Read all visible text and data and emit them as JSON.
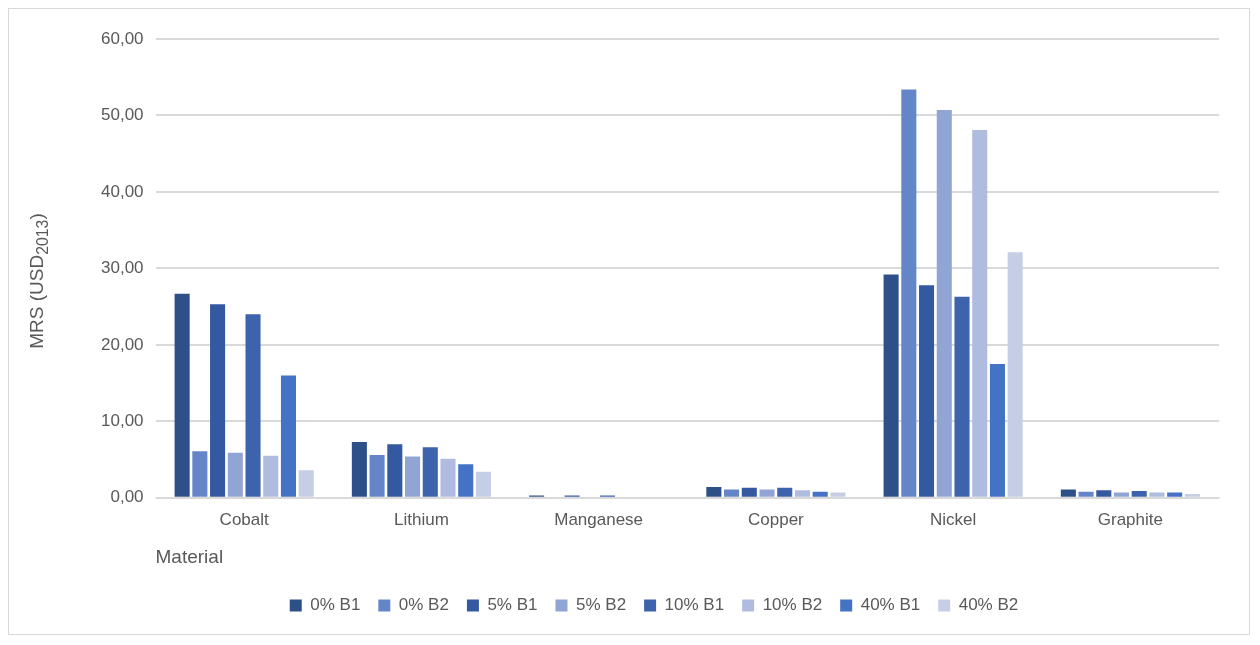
{
  "chart_data": {
    "type": "bar",
    "ylabel": "MRS (USD$_{2013}$)",
    "xlabel": "Material",
    "categories": [
      "Cobalt",
      "Lithium",
      "Manganese",
      "Copper",
      "Nickel",
      "Graphite"
    ],
    "series": [
      {
        "name": "0% B1",
        "color": "#2e5088",
        "values": [
          26.7,
          7.3,
          0.3,
          1.4,
          29.2,
          1.1
        ]
      },
      {
        "name": "0% B2",
        "color": "#6585c9",
        "values": [
          6.1,
          5.6,
          null,
          1.1,
          53.4,
          0.8
        ]
      },
      {
        "name": "5% B1",
        "color": "#3559a0",
        "values": [
          25.3,
          7.0,
          0.3,
          1.3,
          27.8,
          1.0
        ]
      },
      {
        "name": "5% B2",
        "color": "#91a5d4",
        "values": [
          5.9,
          5.4,
          null,
          1.1,
          50.7,
          0.7
        ]
      },
      {
        "name": "10% B1",
        "color": "#3d63ad",
        "values": [
          24.0,
          6.6,
          0.3,
          1.3,
          26.3,
          0.9
        ]
      },
      {
        "name": "10% B2",
        "color": "#afbcdf",
        "values": [
          5.5,
          5.1,
          null,
          1.0,
          48.1,
          0.7
        ]
      },
      {
        "name": "40% B1",
        "color": "#4472c4",
        "values": [
          16.0,
          4.4,
          null,
          0.8,
          17.5,
          0.7
        ]
      },
      {
        "name": "40% B2",
        "color": "#c5cee5",
        "values": [
          3.6,
          3.4,
          null,
          0.7,
          32.1,
          0.5
        ]
      }
    ],
    "ylim": [
      0,
      60
    ],
    "yticks": [
      {
        "value": 0,
        "label": "0,00"
      },
      {
        "value": 10,
        "label": "10,00"
      },
      {
        "value": 20,
        "label": "20,00"
      },
      {
        "value": 30,
        "label": "30,00"
      },
      {
        "value": 40,
        "label": "40,00"
      },
      {
        "value": 50,
        "label": "50,00"
      },
      {
        "value": 60,
        "label": "60,00"
      }
    ],
    "grid": "y",
    "legend": "bottom"
  }
}
